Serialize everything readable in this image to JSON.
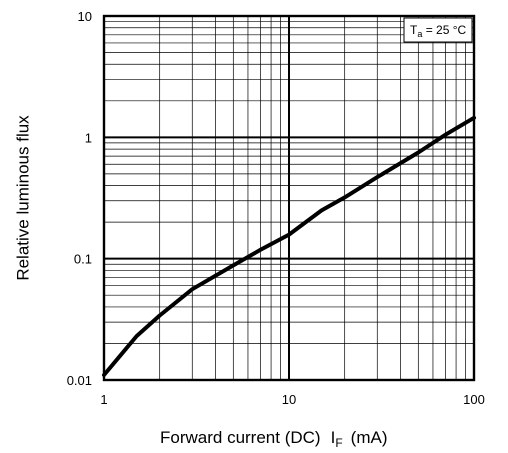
{
  "chart_data": {
    "type": "line",
    "title": "",
    "xlabel": "Forward current (DC)",
    "xlabel_symbol": "I",
    "xlabel_subscript": "F",
    "xlabel_unit": "(mA)",
    "ylabel": "Relative luminous flux",
    "x_scale": "log",
    "y_scale": "log",
    "xlim": [
      1,
      100
    ],
    "ylim": [
      0.01,
      10
    ],
    "x_ticks": [
      "1",
      "10",
      "100"
    ],
    "y_ticks": [
      "0.01",
      "0.1",
      "1",
      "10"
    ],
    "grid": true,
    "annotation": {
      "prefix": "T",
      "subscript": "a",
      "suffix": " = 25 °C",
      "position": "top-right"
    },
    "series": [
      {
        "x": [
          1,
          1.5,
          2,
          3,
          5,
          7,
          10,
          15,
          20,
          30,
          50,
          70,
          100
        ],
        "y": [
          0.011,
          0.023,
          0.034,
          0.056,
          0.088,
          0.118,
          0.158,
          0.25,
          0.32,
          0.47,
          0.75,
          1.05,
          1.45
        ]
      }
    ],
    "colors": {
      "line": "#000000",
      "grid": "#000000",
      "background": "#ffffff"
    }
  }
}
